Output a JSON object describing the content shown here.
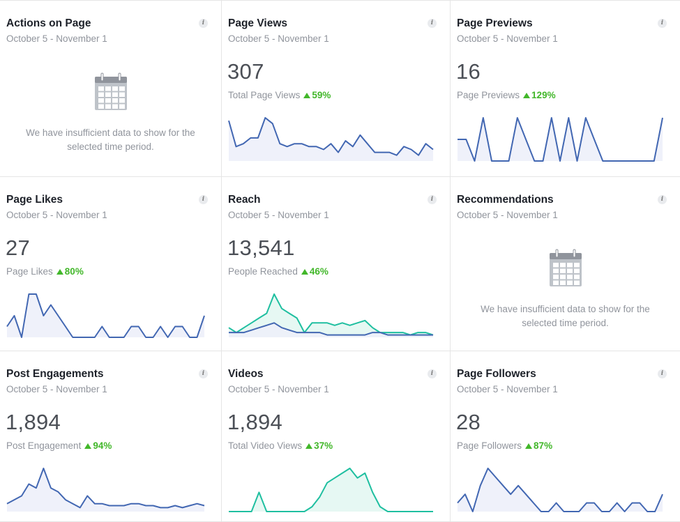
{
  "colors": {
    "blue": "#4267b2",
    "teal": "#1fbfa0",
    "fill_blue": "#edf0fa",
    "fill_teal": "#e3f7f2",
    "green": "#42b72a"
  },
  "cards": [
    {
      "title": "Actions on Page",
      "date_range": "October 5 - November 1",
      "info": "i",
      "empty": true,
      "empty_icon": "calendar-icon",
      "empty_message": "We have insufficient data to show for the selected time period."
    },
    {
      "title": "Page Views",
      "date_range": "October 5 - November 1",
      "info": "i",
      "value": "307",
      "metric_label": "Total Page Views",
      "change": "59%",
      "change_dir": "up"
    },
    {
      "title": "Page Previews",
      "date_range": "October 5 - November 1",
      "info": "i",
      "value": "16",
      "metric_label": "Page Previews",
      "change": "129%",
      "change_dir": "up"
    },
    {
      "title": "Page Likes",
      "date_range": "October 5 - November 1",
      "info": "i",
      "value": "27",
      "metric_label": "Page Likes",
      "change": "80%",
      "change_dir": "up"
    },
    {
      "title": "Reach",
      "date_range": "October 5 - November 1",
      "info": "i",
      "value": "13,541",
      "metric_label": "People Reached",
      "change": "46%",
      "change_dir": "up"
    },
    {
      "title": "Recommendations",
      "date_range": "October 5 - November 1",
      "info": "i",
      "empty": true,
      "empty_icon": "calendar-icon",
      "empty_message": "We have insufficient data to show for the selected time period."
    },
    {
      "title": "Post Engagements",
      "date_range": "October 5 - November 1",
      "info": "i",
      "value": "1,894",
      "metric_label": "Post Engagement",
      "change": "94%",
      "change_dir": "up"
    },
    {
      "title": "Videos",
      "date_range": "October 5 - November 1",
      "info": "i",
      "value": "1,894",
      "metric_label": "Total Video Views",
      "change": "37%",
      "change_dir": "up"
    },
    {
      "title": "Page Followers",
      "date_range": "October 5 - November 1",
      "info": "i",
      "value": "28",
      "metric_label": "Page Followers",
      "change": "87%",
      "change_dir": "up"
    }
  ],
  "chart_data": [
    {
      "card": "Page Views",
      "type": "area",
      "series": [
        {
          "color": "blue",
          "values": [
            14,
            5,
            6,
            8,
            8,
            15,
            13,
            6,
            5,
            6,
            6,
            5,
            5,
            4,
            6,
            3,
            7,
            5,
            9,
            6,
            3,
            3,
            3,
            2,
            5,
            4,
            2,
            6,
            4
          ]
        }
      ]
    },
    {
      "card": "Page Previews",
      "type": "area",
      "series": [
        {
          "color": "blue",
          "values": [
            1,
            1,
            0,
            2,
            0,
            0,
            0,
            2,
            1,
            0,
            0,
            2,
            0,
            2,
            0,
            2,
            1,
            0,
            0,
            0,
            0,
            0,
            0,
            0,
            2
          ]
        }
      ]
    },
    {
      "card": "Page Likes",
      "type": "area",
      "series": [
        {
          "color": "blue",
          "values": [
            1,
            2,
            0,
            4,
            4,
            2,
            3,
            2,
            1,
            0,
            0,
            0,
            0,
            1,
            0,
            0,
            0,
            1,
            1,
            0,
            0,
            1,
            0,
            1,
            1,
            0,
            0,
            2
          ]
        }
      ]
    },
    {
      "card": "Reach",
      "type": "area",
      "series": [
        {
          "color": "teal",
          "values": [
            2,
            1,
            2,
            3,
            4,
            5,
            9,
            6,
            5,
            4,
            1,
            3,
            3,
            3,
            2.5,
            3,
            2.5,
            3,
            3.5,
            2,
            1,
            1,
            1,
            1,
            0.5,
            1,
            1,
            0.5
          ]
        },
        {
          "color": "blue",
          "values": [
            1,
            1,
            1,
            1.5,
            2,
            2.5,
            3,
            2,
            1.5,
            1,
            1,
            1,
            1,
            0.5,
            0.5,
            0.5,
            0.5,
            0.5,
            0.5,
            1,
            1,
            0.5,
            0.5,
            0.5,
            0.5,
            0.5,
            0.5,
            0.5
          ]
        }
      ]
    },
    {
      "card": "Post Engagements",
      "type": "area",
      "series": [
        {
          "color": "blue",
          "values": [
            2,
            3,
            4,
            7,
            6,
            11,
            6,
            5,
            3,
            2,
            1,
            4,
            2,
            2,
            1.5,
            1.5,
            1.5,
            2,
            2,
            1.5,
            1.5,
            1,
            1,
            1.5,
            1,
            1.5,
            2,
            1.5
          ]
        }
      ]
    },
    {
      "card": "Videos",
      "type": "area",
      "series": [
        {
          "color": "teal",
          "values": [
            0,
            0,
            0,
            0,
            4,
            0,
            0,
            0,
            0,
            0,
            0,
            1,
            3,
            6,
            7,
            8,
            9,
            7,
            8,
            4,
            1,
            0,
            0,
            0,
            0,
            0,
            0,
            0
          ]
        }
      ]
    },
    {
      "card": "Page Followers",
      "type": "area",
      "series": [
        {
          "color": "blue",
          "values": [
            1,
            2,
            0,
            3,
            5,
            4,
            3,
            2,
            3,
            2,
            1,
            0,
            0,
            1,
            0,
            0,
            0,
            1,
            1,
            0,
            0,
            1,
            0,
            1,
            1,
            0,
            0,
            2
          ]
        }
      ]
    }
  ]
}
